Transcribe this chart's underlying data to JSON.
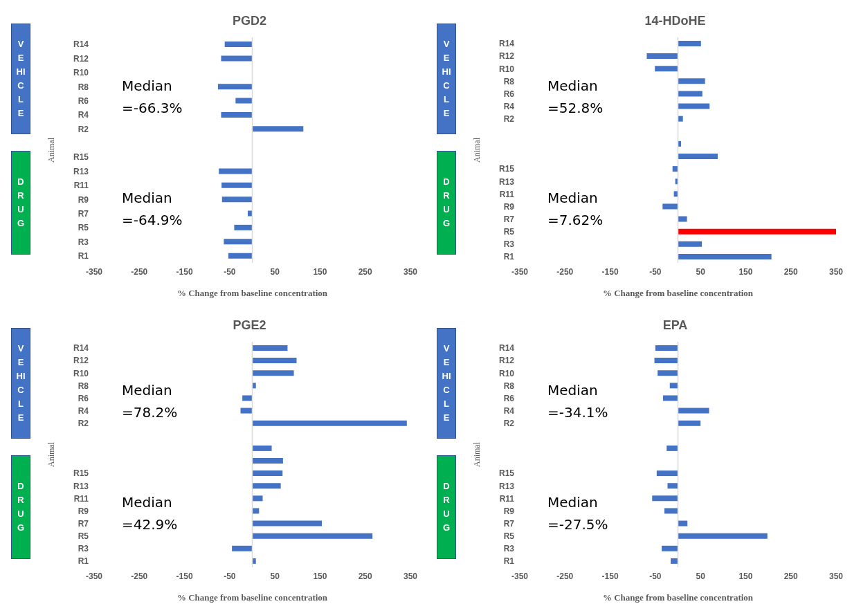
{
  "chart_data": [
    {
      "type": "bar",
      "orientation": "horizontal",
      "title": "PGD2",
      "xlabel": "% Change from baseline concentration",
      "ylabel": "Animal",
      "categories": [
        "R14",
        "R12",
        "R10",
        "R8",
        "R6",
        "R4",
        "R2",
        null,
        "R15",
        "R13",
        "R11",
        "R9",
        "R7",
        "R5",
        "R3",
        "R1"
      ],
      "values": [
        -61,
        -69,
        null,
        -76,
        -37,
        -69,
        113,
        null,
        null,
        -74,
        -68,
        -67,
        -10,
        -40,
        -63,
        -53
      ],
      "color": "#4472c4",
      "xlim": [
        -350,
        350
      ],
      "xticks": [
        -350,
        -250,
        -150,
        -50,
        50,
        150,
        250,
        350
      ],
      "grid": false,
      "legend": false,
      "ref_lines": [
        {
          "axis": "x",
          "value": 0,
          "color": "#d9d9d9"
        }
      ],
      "annotations": [
        "VEHICLE",
        "DRUG",
        "Median =-66.3%",
        "Median =-64.9%"
      ]
    },
    {
      "type": "bar",
      "orientation": "horizontal",
      "title": "14-HDoHE",
      "xlabel": "% Change from baseline concentration",
      "ylabel": "Animal",
      "categories": [
        "R14",
        "R12",
        "R10",
        "R8",
        "R6",
        "R4",
        "R2",
        null,
        null,
        null,
        "R15",
        "R13",
        "R11",
        "R9",
        "R7",
        "R5",
        "R3",
        "R1"
      ],
      "values": [
        51,
        -69,
        -51,
        60,
        54,
        70,
        11,
        null,
        7,
        88,
        -12,
        -6,
        -9,
        -34,
        20,
        350,
        53,
        207
      ],
      "colors": [
        "#4472c4",
        "#4472c4",
        "#4472c4",
        "#4472c4",
        "#4472c4",
        "#4472c4",
        "#4472c4",
        "#4472c4",
        "#4472c4",
        "#4472c4",
        "#4472c4",
        "#4472c4",
        "#4472c4",
        "#4472c4",
        "#4472c4",
        "#ff0000",
        "#4472c4",
        "#4472c4"
      ],
      "xlim": [
        -350,
        350
      ],
      "xticks": [
        -350,
        -250,
        -150,
        -50,
        50,
        150,
        250,
        350
      ],
      "grid": false,
      "legend": false,
      "ref_lines": [
        {
          "axis": "x",
          "value": 0,
          "color": "#d9d9d9"
        }
      ],
      "annotations": [
        "VEHICLE",
        "DRUG",
        "Median =52.8%",
        "Median =7.62%"
      ]
    },
    {
      "type": "bar",
      "orientation": "horizontal",
      "title": "PGE2",
      "xlabel": "% Change from baseline concentration",
      "ylabel": "Animal",
      "categories": [
        "R14",
        "R12",
        "R10",
        "R8",
        "R6",
        "R4",
        "R2",
        null,
        null,
        null,
        "R15",
        "R13",
        "R11",
        "R9",
        "R7",
        "R5",
        "R3",
        "R1"
      ],
      "values": [
        78,
        98,
        92,
        8,
        -22,
        -26,
        342,
        null,
        43,
        68,
        67,
        63,
        23,
        15,
        154,
        266,
        -45,
        8
      ],
      "color": "#4472c4",
      "xlim": [
        -350,
        350
      ],
      "xticks": [
        -350,
        -250,
        -150,
        -50,
        50,
        150,
        250,
        350
      ],
      "grid": false,
      "legend": false,
      "ref_lines": [
        {
          "axis": "x",
          "value": 0,
          "color": "#d9d9d9"
        }
      ],
      "annotations": [
        "VEHICLE",
        "DRUG",
        "Median =78.2%",
        "Median =42.9%"
      ]
    },
    {
      "type": "bar",
      "orientation": "horizontal",
      "title": "EPA",
      "xlabel": "% Change from baseline concentration",
      "ylabel": "Animal",
      "categories": [
        "R14",
        "R12",
        "R10",
        "R8",
        "R6",
        "R4",
        "R2",
        null,
        null,
        null,
        "R15",
        "R13",
        "R11",
        "R9",
        "R7",
        "R5",
        "R3",
        "R1"
      ],
      "values": [
        -50,
        -52,
        -45,
        -18,
        -33,
        69,
        50,
        null,
        -25,
        null,
        -47,
        -23,
        -57,
        -30,
        21,
        198,
        -36,
        -16
      ],
      "color": "#4472c4",
      "xlim": [
        -350,
        350
      ],
      "xticks": [
        -350,
        -250,
        -150,
        -50,
        50,
        150,
        250,
        350
      ],
      "grid": false,
      "legend": false,
      "ref_lines": [
        {
          "axis": "x",
          "value": 0,
          "color": "#d9d9d9"
        }
      ],
      "annotations": [
        "VEHICLE",
        "DRUG",
        "Median =-34.1%",
        "Median =-27.5%"
      ]
    }
  ]
}
